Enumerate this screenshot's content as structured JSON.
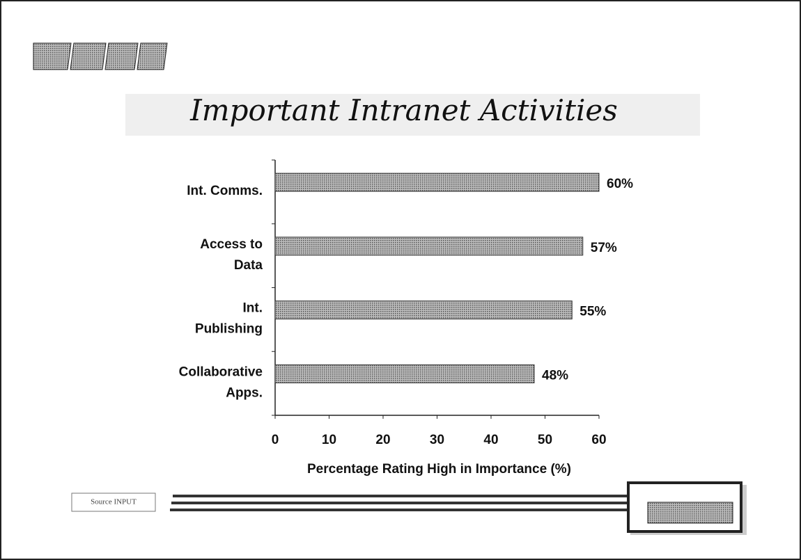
{
  "chart_data": {
    "type": "barh",
    "title": "Important Intranet Activities",
    "categories": [
      [
        "Int. Comms."
      ],
      [
        "Access to",
        "Data"
      ],
      [
        "Int.",
        "Publishing"
      ],
      [
        "Collaborative",
        "Apps."
      ]
    ],
    "values": [
      60,
      57,
      55,
      48
    ],
    "value_labels": [
      "60%",
      "57%",
      "55%",
      "48%"
    ],
    "color": "#9a9a9a",
    "xlim": [
      0,
      60
    ],
    "xticks": [
      0,
      10,
      20,
      30,
      40,
      50,
      60
    ],
    "xlabel": "Percentage Rating High in Importance (%)",
    "source": "Source INPUT"
  }
}
